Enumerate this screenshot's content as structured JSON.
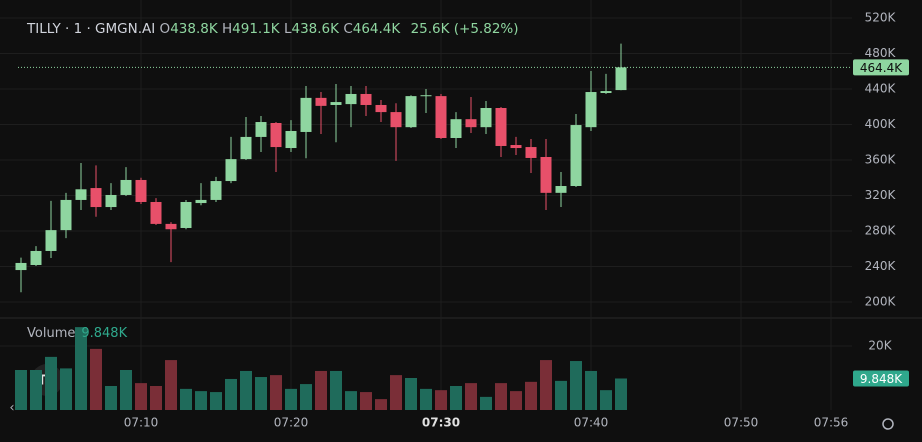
{
  "chart_data": {
    "type": "candlestick",
    "title": "TILLY · 1 · GMGN.AI",
    "legend": [
      {
        "key": "O",
        "value": "438.8K"
      },
      {
        "key": "H",
        "value": "491.1K"
      },
      {
        "key": "L",
        "value": "438.6K"
      },
      {
        "key": "C",
        "value": "464.4K"
      }
    ],
    "change": "25.6K (+5.82%)",
    "x": [
      422,
      423,
      424,
      425,
      426,
      427,
      428,
      429,
      430,
      431,
      432,
      433,
      434,
      435,
      436,
      437,
      438,
      439,
      440,
      441,
      442,
      443,
      444,
      445,
      446,
      447,
      448,
      449,
      450,
      451,
      452,
      453,
      454,
      455,
      456,
      457,
      458,
      459,
      460,
      461,
      462
    ],
    "open": [
      236000,
      241700,
      257500,
      281000,
      315000,
      328400,
      307000,
      320600,
      337500,
      312700,
      288000,
      283400,
      311500,
      315000,
      336300,
      361000,
      386000,
      401700,
      373500,
      391600,
      430000,
      422000,
      423000,
      434400,
      422000,
      414000,
      397000,
      432000,
      432000,
      384800,
      406000,
      397000,
      418600,
      376900,
      374600,
      363400,
      323000,
      330700,
      397000,
      435500,
      438800
    ],
    "high": [
      250000,
      263000,
      314000,
      323000,
      356600,
      354000,
      334000,
      352000,
      340000,
      317000,
      290000,
      315000,
      334000,
      341000,
      386000,
      408400,
      409600,
      402800,
      405000,
      443400,
      436600,
      445600,
      443400,
      443400,
      427600,
      424000,
      433000,
      440000,
      434400,
      414000,
      431000,
      426500,
      419700,
      386000,
      383700,
      383700,
      346500,
      411800,
      460300,
      457000,
      491100
    ],
    "low": [
      211000,
      240500,
      249600,
      272000,
      303600,
      296000,
      303600,
      319400,
      310400,
      286800,
      245000,
      282000,
      309000,
      312700,
      334000,
      360000,
      369000,
      346500,
      369000,
      362000,
      389300,
      380000,
      397000,
      409600,
      402800,
      359000,
      396000,
      413000,
      383700,
      373500,
      390400,
      389300,
      363400,
      365600,
      345300,
      303600,
      307000,
      329600,
      392700,
      434400,
      438600
    ],
    "close": [
      244000,
      257500,
      281000,
      315000,
      327000,
      307000,
      320600,
      337500,
      312700,
      288000,
      282000,
      312700,
      315000,
      336300,
      361000,
      386000,
      402800,
      374600,
      392700,
      430000,
      421000,
      425300,
      434400,
      422000,
      414000,
      397000,
      432000,
      433000,
      384800,
      406000,
      397000,
      418600,
      375800,
      373500,
      362300,
      323000,
      330700,
      399400,
      436600,
      437700,
      464400
    ],
    "volume": [
      12500,
      12500,
      16600,
      13000,
      25900,
      19100,
      7500,
      12500,
      8400,
      7500,
      15600,
      6600,
      5900,
      5600,
      9700,
      12200,
      10300,
      10900,
      6600,
      8100,
      12200,
      12200,
      5900,
      5600,
      3400,
      10900,
      10000,
      6600,
      6200,
      7500,
      8400,
      4100,
      8400,
      5900,
      8800,
      15600,
      9100,
      15300,
      12200,
      6200,
      9848
    ],
    "up_color": "#8fd6a0",
    "down_color": "#e8506a",
    "volume_up_color": "#1f6b5b",
    "volume_down_color": "#7a2e37",
    "xlim": [
      420.6,
      477.4
    ],
    "xticks": [
      {
        "value": 430,
        "label": "07:10"
      },
      {
        "value": 440,
        "label": "07:20"
      },
      {
        "value": 450,
        "label": "07:30"
      },
      {
        "value": 460,
        "label": "07:40"
      },
      {
        "value": 470,
        "label": "07:50"
      },
      {
        "value": 476,
        "label": "07:56"
      }
    ],
    "ylim": [
      183100,
      540300
    ],
    "yticks": [
      {
        "value": 200000,
        "label": "200K"
      },
      {
        "value": 240000,
        "label": "240K"
      },
      {
        "value": 280000,
        "label": "280K"
      },
      {
        "value": 320000,
        "label": "320K"
      },
      {
        "value": 360000,
        "label": "360K"
      },
      {
        "value": 400000,
        "label": "400K"
      },
      {
        "value": 440000,
        "label": "440K"
      },
      {
        "value": 480000,
        "label": "480K"
      },
      {
        "value": 520000,
        "label": "520K"
      }
    ],
    "volume_title": "Volume",
    "volume_ylim": [
      0,
      28750
    ],
    "volume_yticks": [
      {
        "value": 20000,
        "label": "20K"
      }
    ],
    "last_price": {
      "value": 464400,
      "label": "464.4K"
    },
    "last_volume": {
      "value": 9848,
      "label": "9.848K"
    },
    "grid": true
  }
}
